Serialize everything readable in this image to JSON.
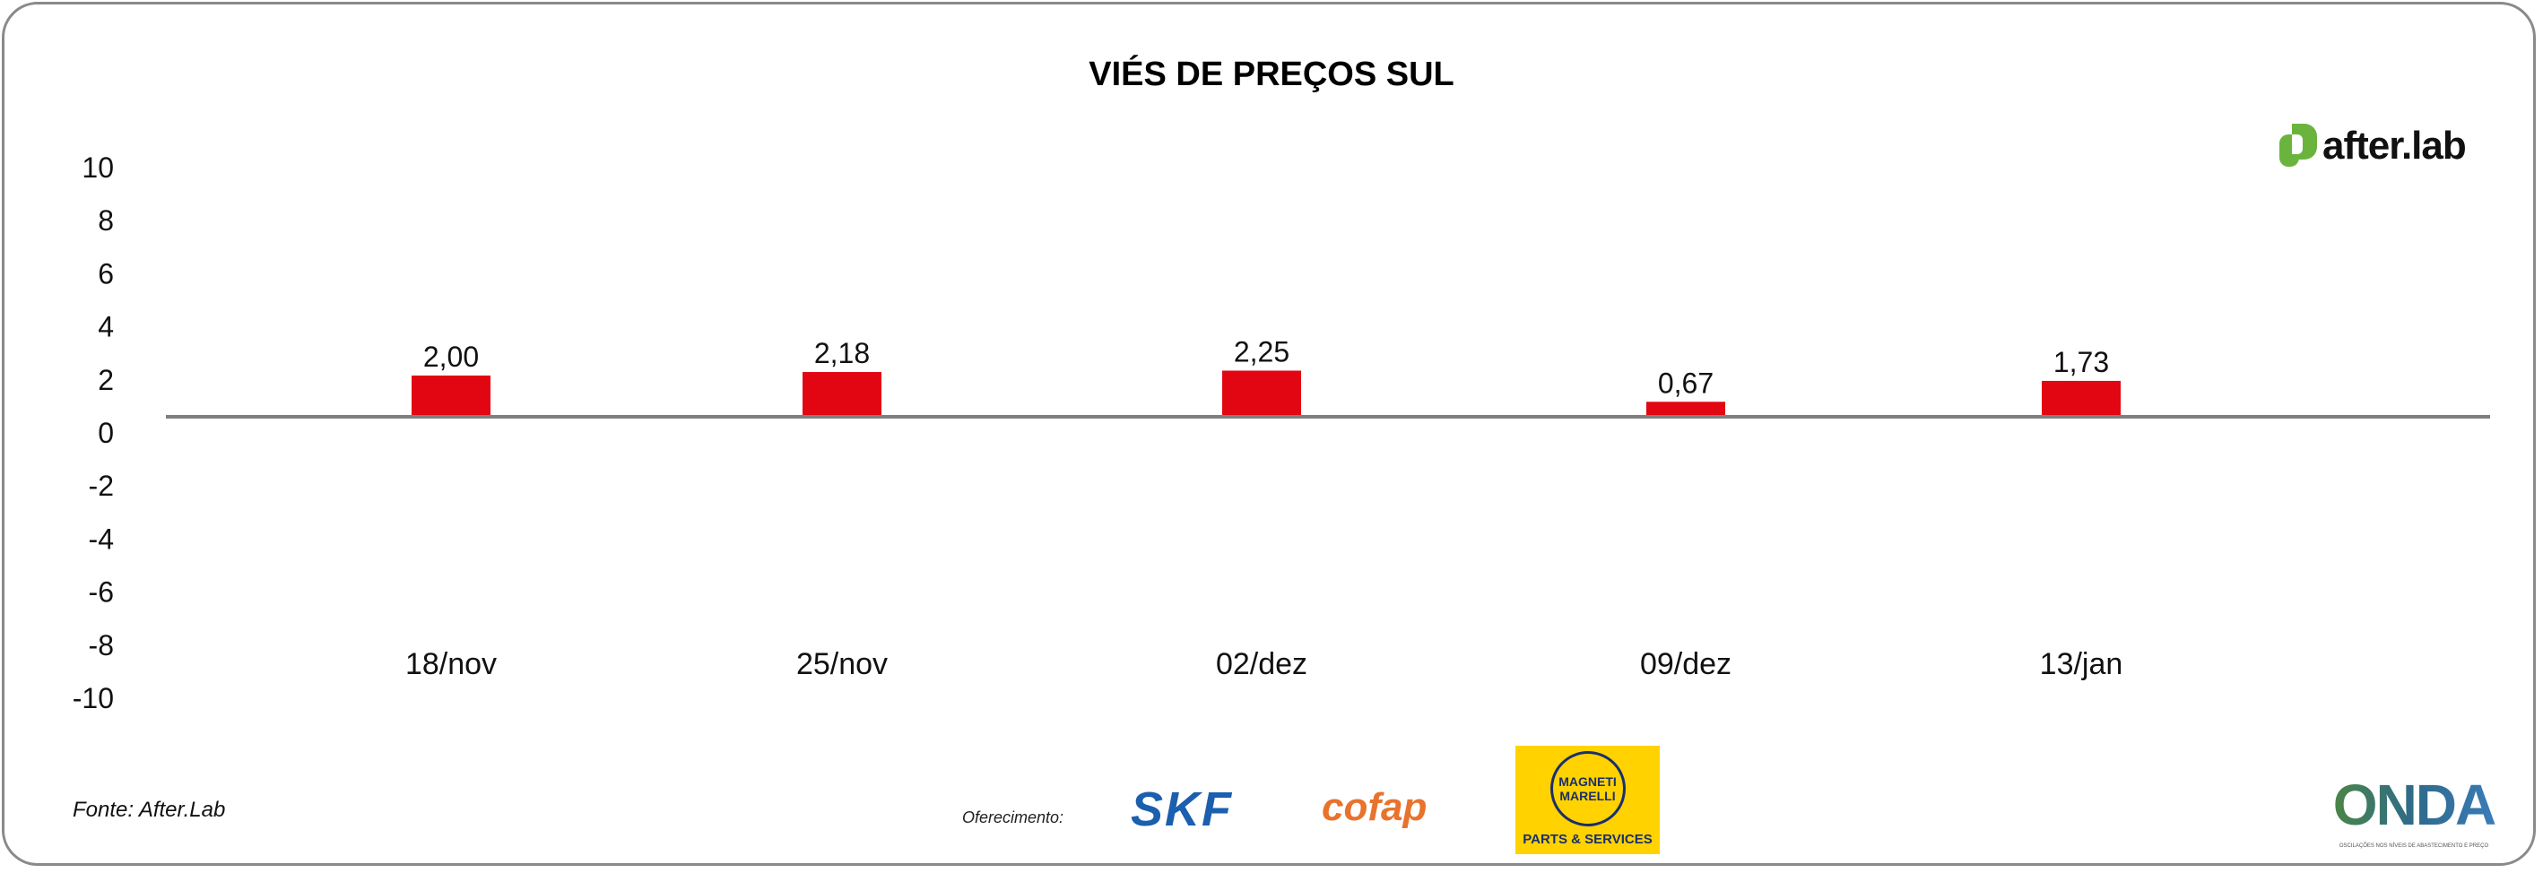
{
  "chart_data": {
    "type": "bar",
    "title": "VIÉS DE PREÇOS SUL",
    "categories": [
      "18/nov",
      "25/nov",
      "02/dez",
      "09/dez",
      "13/jan"
    ],
    "values": [
      2.0,
      2.18,
      2.25,
      0.67,
      1.73
    ],
    "data_labels": [
      "2,00",
      "2,18",
      "2,25",
      "0,67",
      "1,73"
    ],
    "y_ticks": [
      "10",
      "8",
      "6",
      "4",
      "2",
      "0",
      "-2",
      "-4",
      "-6",
      "-8",
      "-10"
    ],
    "ylim": [
      -10,
      10
    ],
    "xlabel": "",
    "ylabel": "",
    "bar_color": "#e20613",
    "grid": false
  },
  "brand": {
    "name": "after.lab",
    "color": "#6ab43e"
  },
  "footer": {
    "source": "Fonte: After.Lab",
    "sponsored_by": "Oferecimento:",
    "sponsors": [
      "SKF",
      "cofap",
      "MAGNETI MARELLI",
      "PARTS & SERVICES"
    ],
    "onda": "ONDA",
    "onda_sub": "OSCILAÇÕES NOS NÍVEIS DE ABASTECIMENTO E PREÇO"
  }
}
